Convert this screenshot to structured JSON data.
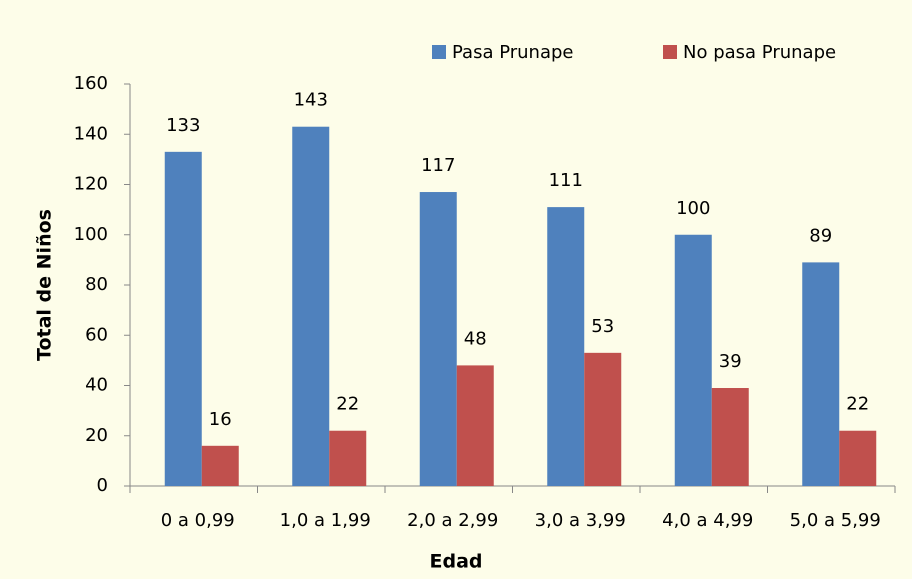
{
  "chart_data": {
    "type": "bar",
    "categories": [
      "0 a 0,99",
      "1,0 a 1,99",
      "2,0 a 2,99",
      "3,0 a 3,99",
      "4,0 a 4,99",
      "5,0 a 5,99"
    ],
    "series": [
      {
        "name": "Pasa Prunape",
        "color": "#4f81bd",
        "values": [
          133,
          143,
          117,
          111,
          100,
          89
        ]
      },
      {
        "name": "No pasa Prunape",
        "color": "#c0504d",
        "values": [
          16,
          22,
          48,
          53,
          39,
          22
        ]
      }
    ],
    "xlabel": "Edad",
    "ylabel": "Total de Niños",
    "ylim": [
      0,
      160
    ],
    "yticks": [
      0,
      20,
      40,
      60,
      80,
      100,
      120,
      140,
      160
    ],
    "legend": "top"
  }
}
